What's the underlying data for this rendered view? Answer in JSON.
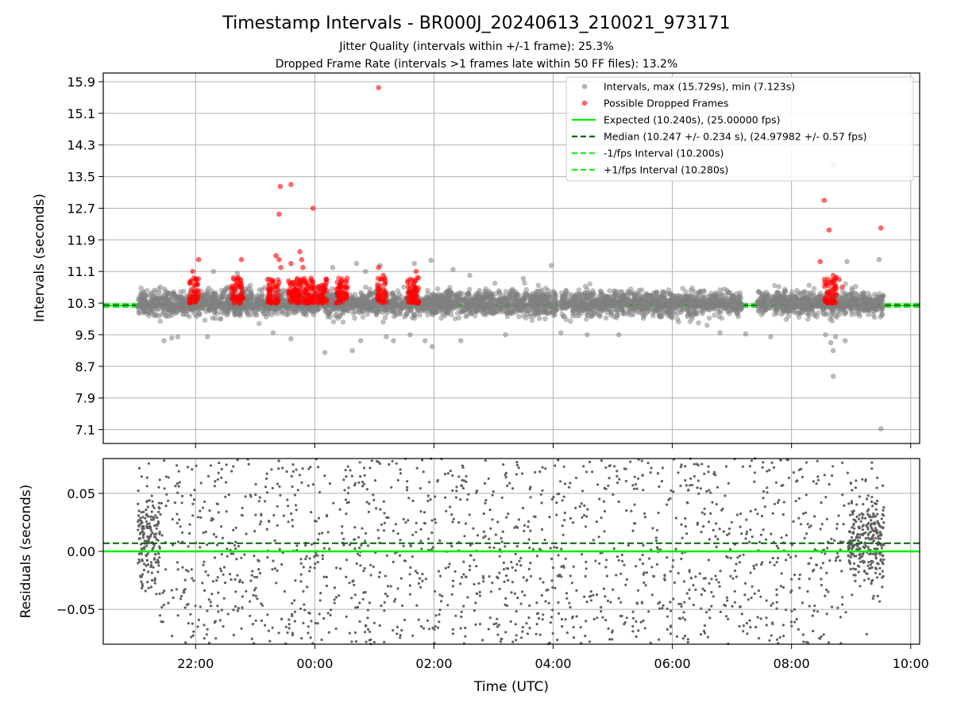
{
  "chart_data": [
    {
      "type": "scatter",
      "title": "Timestamp Intervals - BR000J_20240613_210021_973171",
      "subtitle_lines": [
        "Jitter Quality (intervals within +/-1 frame): 25.3%",
        "Dropped Frame Rate (intervals >1 frames late within 50 FF files): 13.2%"
      ],
      "ylabel": "Intervals (seconds)",
      "xlabel": "",
      "ylim": [
        6.75,
        16.12
      ],
      "xlim_hours": [
        20.45,
        34.15
      ],
      "yticks": [
        7.1,
        7.9,
        8.7,
        9.5,
        10.3,
        11.1,
        11.9,
        12.7,
        13.5,
        14.3,
        15.1,
        15.9
      ],
      "ytick_labels": [
        "7.1",
        "7.9",
        "8.7",
        "9.5",
        "10.3",
        "11.1",
        "11.9",
        "12.7",
        "13.5",
        "14.3",
        "15.1",
        "15.9"
      ],
      "grid": true,
      "legend_position": "top-right",
      "legend": [
        {
          "label": "Intervals, max (15.729s), min (7.123s)",
          "style": "marker",
          "color": "#808080"
        },
        {
          "label": "Possible Dropped Frames",
          "style": "marker",
          "color": "#ff0000"
        },
        {
          "label": "Expected (10.240s), (25.00000 fps)",
          "style": "solid",
          "color": "#00ee00"
        },
        {
          "label": "Median (10.247 +/- 0.234 s), (24.97982 +/- 0.57 fps)",
          "style": "dashed",
          "color": "#006400"
        },
        {
          "label": "-1/fps Interval (10.200s)",
          "style": "dashed",
          "color": "#22ee22"
        },
        {
          "label": "+1/fps Interval (10.280s)",
          "style": "dashed",
          "color": "#22ee22"
        }
      ],
      "reference_lines": {
        "expected": 10.24,
        "median": 10.247,
        "minus_1_fps": 10.2,
        "plus_1_fps": 10.28
      },
      "series": [
        {
          "name": "Intervals",
          "color": "#808080",
          "bulk": {
            "x_range_hours": [
              21.03,
              33.55
            ],
            "gaps_hours": [
              [
                28.07,
                28.13
              ],
              [
                31.17,
                31.42
              ]
            ],
            "center": 10.3,
            "spread": 0.28,
            "approx_count": 4400
          },
          "outliers": [
            {
              "x": 21.47,
              "y": 9.35
            },
            {
              "x": 21.6,
              "y": 9.42
            },
            {
              "x": 21.7,
              "y": 9.45
            },
            {
              "x": 22.2,
              "y": 9.45
            },
            {
              "x": 22.3,
              "y": 11.1
            },
            {
              "x": 22.7,
              "y": 11.05
            },
            {
              "x": 23.3,
              "y": 9.55
            },
            {
              "x": 23.6,
              "y": 9.4
            },
            {
              "x": 24.17,
              "y": 9.05
            },
            {
              "x": 24.3,
              "y": 11.2
            },
            {
              "x": 24.63,
              "y": 9.1
            },
            {
              "x": 24.7,
              "y": 11.3
            },
            {
              "x": 24.77,
              "y": 9.35
            },
            {
              "x": 24.85,
              "y": 11.1
            },
            {
              "x": 25.1,
              "y": 11.25
            },
            {
              "x": 25.2,
              "y": 9.45
            },
            {
              "x": 25.32,
              "y": 9.35
            },
            {
              "x": 25.6,
              "y": 9.5
            },
            {
              "x": 25.67,
              "y": 11.3
            },
            {
              "x": 25.85,
              "y": 9.35
            },
            {
              "x": 25.95,
              "y": 11.38
            },
            {
              "x": 25.97,
              "y": 9.2
            },
            {
              "x": 26.32,
              "y": 11.15
            },
            {
              "x": 26.45,
              "y": 9.35
            },
            {
              "x": 26.6,
              "y": 11.0
            },
            {
              "x": 27.2,
              "y": 9.5
            },
            {
              "x": 27.5,
              "y": 10.92
            },
            {
              "x": 27.97,
              "y": 11.25
            },
            {
              "x": 28.13,
              "y": 9.55
            },
            {
              "x": 28.57,
              "y": 9.5
            },
            {
              "x": 29.1,
              "y": 9.5
            },
            {
              "x": 30.8,
              "y": 9.55
            },
            {
              "x": 31.23,
              "y": 9.52
            },
            {
              "x": 31.65,
              "y": 9.45
            },
            {
              "x": 32.57,
              "y": 9.5
            },
            {
              "x": 32.66,
              "y": 9.3
            },
            {
              "x": 32.7,
              "y": 9.1
            },
            {
              "x": 32.7,
              "y": 8.45
            },
            {
              "x": 32.74,
              "y": 9.45
            },
            {
              "x": 32.9,
              "y": 9.35
            },
            {
              "x": 32.93,
              "y": 11.35
            },
            {
              "x": 33.47,
              "y": 11.4
            },
            {
              "x": 33.5,
              "y": 7.12
            },
            {
              "x": 32.7,
              "y": 13.8
            }
          ]
        },
        {
          "name": "Possible Dropped Frames",
          "color": "#ff0000",
          "clusters_hours": [
            [
              21.9,
              22.05
            ],
            [
              22.6,
              22.8
            ],
            [
              23.2,
              23.4
            ],
            [
              23.55,
              23.8
            ],
            [
              23.8,
              24.2
            ],
            [
              24.35,
              24.55
            ],
            [
              25.05,
              25.2
            ],
            [
              25.55,
              25.75
            ],
            [
              32.55,
              32.75
            ]
          ],
          "cluster_y_range": [
            10.3,
            10.95
          ],
          "points": [
            {
              "x": 22.05,
              "y": 11.4
            },
            {
              "x": 22.77,
              "y": 11.4
            },
            {
              "x": 21.95,
              "y": 11.1
            },
            {
              "x": 23.35,
              "y": 11.5
            },
            {
              "x": 23.4,
              "y": 11.4
            },
            {
              "x": 23.43,
              "y": 11.2
            },
            {
              "x": 23.6,
              "y": 11.3
            },
            {
              "x": 23.75,
              "y": 11.6
            },
            {
              "x": 23.78,
              "y": 11.4
            },
            {
              "x": 23.8,
              "y": 11.2
            },
            {
              "x": 23.42,
              "y": 13.25
            },
            {
              "x": 23.4,
              "y": 12.55
            },
            {
              "x": 23.6,
              "y": 13.3
            },
            {
              "x": 23.97,
              "y": 12.7
            },
            {
              "x": 25.07,
              "y": 15.75
            },
            {
              "x": 25.07,
              "y": 11.2
            },
            {
              "x": 25.15,
              "y": 11.0
            },
            {
              "x": 25.7,
              "y": 11.1
            },
            {
              "x": 25.6,
              "y": 10.9
            },
            {
              "x": 32.48,
              "y": 11.35
            },
            {
              "x": 32.55,
              "y": 12.9
            },
            {
              "x": 32.63,
              "y": 12.15
            },
            {
              "x": 32.7,
              "y": 11.0
            },
            {
              "x": 32.75,
              "y": 10.95
            },
            {
              "x": 32.8,
              "y": 10.9
            },
            {
              "x": 32.85,
              "y": 10.7
            },
            {
              "x": 33.5,
              "y": 12.2
            }
          ]
        }
      ]
    },
    {
      "type": "scatter",
      "title": "",
      "ylabel": "Residuals (seconds)",
      "xlabel": "Time (UTC)",
      "ylim": [
        -0.08,
        0.08
      ],
      "yticks": [
        -0.05,
        0.0,
        0.05
      ],
      "ytick_labels": [
        "−0.05",
        "0.00",
        "0.05"
      ],
      "xticks_hours": [
        22,
        24,
        26,
        28,
        30,
        32,
        34
      ],
      "xtick_labels": [
        "22:00",
        "00:00",
        "02:00",
        "04:00",
        "06:00",
        "08:00",
        "10:00"
      ],
      "grid": true,
      "reference_lines": {
        "expected": 0.0,
        "median": 0.007
      },
      "series": [
        {
          "name": "Residuals",
          "color": "#606060",
          "bulk": {
            "x_range_hours": [
              21.03,
              33.55
            ],
            "dense_segments_hours": [
              [
                21.03,
                21.4
              ],
              [
                32.95,
                33.55
              ]
            ],
            "range": [
              -0.08,
              0.08
            ],
            "approx_count": 2000
          }
        }
      ]
    }
  ]
}
